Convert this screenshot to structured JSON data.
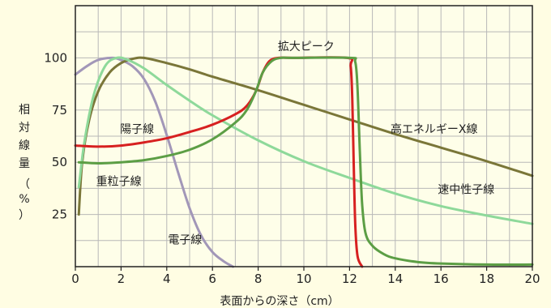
{
  "chart_data": {
    "type": "line",
    "xlabel": "表面からの深さ（cm）",
    "ylabel": "相対線量（%）",
    "ylabel_chars": [
      "相",
      "対",
      "線",
      "量",
      "（",
      "%",
      "）"
    ],
    "xlim": [
      0,
      20
    ],
    "ylim": [
      0,
      125
    ],
    "xticks": [
      0,
      2,
      4,
      6,
      8,
      10,
      12,
      14,
      16,
      18,
      20
    ],
    "yticks": [
      25,
      50,
      75,
      100
    ],
    "grid": true,
    "annotations": [
      {
        "text": "拡大ピーク",
        "x": 10.1,
        "y": 105.5
      },
      {
        "text": "陽子線",
        "x": 2.7,
        "y": 66
      },
      {
        "text": "重粒子線",
        "x": 1.9,
        "y": 41
      },
      {
        "text": "電子線",
        "x": 4.8,
        "y": 13
      },
      {
        "text": "高エネルギーX線",
        "x": 15.7,
        "y": 66
      },
      {
        "text": "速中性子線",
        "x": 17.1,
        "y": 37
      }
    ],
    "series": [
      {
        "key": "electron",
        "color": "#a297b8",
        "points": [
          [
            0,
            92
          ],
          [
            0.5,
            96
          ],
          [
            1,
            99
          ],
          [
            1.6,
            100
          ],
          [
            2,
            99
          ],
          [
            2.5,
            96
          ],
          [
            3,
            90
          ],
          [
            3.5,
            79
          ],
          [
            4,
            63
          ],
          [
            4.5,
            45
          ],
          [
            5,
            28
          ],
          [
            5.5,
            15
          ],
          [
            6,
            7
          ],
          [
            6.5,
            2.5
          ],
          [
            6.9,
            0
          ]
        ]
      },
      {
        "key": "xray",
        "color": "#7a7638",
        "points": [
          [
            0.15,
            25
          ],
          [
            0.3,
            50
          ],
          [
            0.6,
            70
          ],
          [
            1,
            84
          ],
          [
            1.5,
            93
          ],
          [
            2,
            97.5
          ],
          [
            2.5,
            99.5
          ],
          [
            3,
            100
          ],
          [
            4,
            97.5
          ],
          [
            5,
            94.5
          ],
          [
            6,
            91
          ],
          [
            8,
            84.5
          ],
          [
            10,
            77.5
          ],
          [
            12,
            70.5
          ],
          [
            14,
            63.5
          ],
          [
            16,
            57
          ],
          [
            18,
            50.5
          ],
          [
            20,
            43.5
          ]
        ]
      },
      {
        "key": "fast_neutron",
        "color": "#8ed99a",
        "points": [
          [
            0.15,
            38
          ],
          [
            0.4,
            60
          ],
          [
            0.8,
            82
          ],
          [
            1.3,
            96
          ],
          [
            1.8,
            100
          ],
          [
            2.3,
            99
          ],
          [
            3,
            95
          ],
          [
            4,
            87
          ],
          [
            5,
            79.5
          ],
          [
            6,
            72.5
          ],
          [
            8,
            60.5
          ],
          [
            10,
            50.5
          ],
          [
            12,
            42.5
          ],
          [
            14,
            35
          ],
          [
            16,
            29
          ],
          [
            18,
            24.5
          ],
          [
            20,
            20.5
          ]
        ]
      },
      {
        "key": "proton",
        "color": "#d72020",
        "points": [
          [
            0,
            58
          ],
          [
            1,
            57.5
          ],
          [
            2,
            58
          ],
          [
            3,
            59.5
          ],
          [
            4,
            61.5
          ],
          [
            5,
            64.5
          ],
          [
            6,
            68
          ],
          [
            7,
            73
          ],
          [
            7.5,
            77
          ],
          [
            7.9,
            84
          ],
          [
            8.2,
            93
          ],
          [
            8.5,
            98.5
          ],
          [
            8.9,
            100
          ],
          [
            9.5,
            100
          ],
          [
            11.9,
            100
          ],
          [
            12.05,
            96
          ],
          [
            12.12,
            80
          ],
          [
            12.18,
            50
          ],
          [
            12.25,
            20
          ],
          [
            12.35,
            5
          ],
          [
            12.55,
            0
          ]
        ]
      },
      {
        "key": "heavy_ion",
        "color": "#5c9e45",
        "points": [
          [
            0.15,
            50
          ],
          [
            1,
            49.5
          ],
          [
            2,
            50
          ],
          [
            3,
            51
          ],
          [
            4,
            53
          ],
          [
            5,
            56
          ],
          [
            6,
            61
          ],
          [
            7,
            69
          ],
          [
            7.5,
            75
          ],
          [
            7.9,
            84
          ],
          [
            8.2,
            93
          ],
          [
            8.6,
            98.5
          ],
          [
            9,
            100
          ],
          [
            9.5,
            100
          ],
          [
            12,
            100
          ],
          [
            12.25,
            98
          ],
          [
            12.35,
            85
          ],
          [
            12.45,
            55
          ],
          [
            12.55,
            30
          ],
          [
            12.7,
            16
          ],
          [
            13,
            10
          ],
          [
            13.5,
            6
          ],
          [
            14,
            4
          ],
          [
            15,
            2.2
          ],
          [
            16,
            1.5
          ],
          [
            18,
            1
          ],
          [
            20,
            1
          ]
        ]
      }
    ]
  }
}
